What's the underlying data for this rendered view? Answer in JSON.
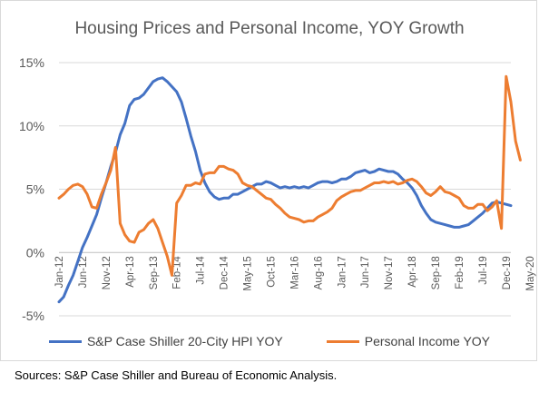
{
  "colors": {
    "hpi": "#4472C4",
    "income": "#ED7D31",
    "grid": "#d9d9d9",
    "axis": "#bfbfbf"
  },
  "source_note": "Sources: S&P Case Shiller and Bureau of Economic Analysis.",
  "chart_data": {
    "type": "line",
    "title": "Housing Prices and Personal Income, YOY Growth",
    "xlabel": "",
    "ylabel": "",
    "ylim": [
      -5,
      15
    ],
    "y_ticks": [
      "15%",
      "10%",
      "5%",
      "0%",
      "-5%"
    ],
    "x_tick_labels": [
      "Jan-12",
      "Jun-12",
      "Nov-12",
      "Apr-13",
      "Sep-13",
      "Feb-14",
      "Jul-14",
      "Dec-14",
      "May-15",
      "Oct-15",
      "Mar-16",
      "Aug-16",
      "Jan-17",
      "Jun-17",
      "Nov-17",
      "Apr-18",
      "Sep-18",
      "Feb-19",
      "Jul-19",
      "Dec-19",
      "May-20"
    ],
    "x_start": "Jan-12",
    "x_end": "May-20",
    "legend_position": "bottom",
    "grid": true,
    "series": [
      {
        "name": "S&P Case Shiller 20-City HPI YOY",
        "values": [
          -3.9,
          -3.5,
          -2.6,
          -1.8,
          -0.7,
          0.4,
          1.2,
          2.1,
          3.0,
          4.3,
          5.5,
          6.8,
          7.9,
          9.3,
          10.2,
          11.6,
          12.1,
          12.2,
          12.5,
          13.0,
          13.5,
          13.7,
          13.8,
          13.5,
          13.1,
          12.7,
          11.9,
          10.6,
          9.2,
          8.0,
          6.5,
          5.5,
          4.8,
          4.4,
          4.2,
          4.3,
          4.3,
          4.6,
          4.6,
          4.8,
          5.0,
          5.2,
          5.4,
          5.4,
          5.6,
          5.5,
          5.3,
          5.1,
          5.2,
          5.1,
          5.2,
          5.1,
          5.2,
          5.1,
          5.3,
          5.5,
          5.6,
          5.6,
          5.5,
          5.6,
          5.8,
          5.8,
          6.0,
          6.3,
          6.4,
          6.5,
          6.3,
          6.4,
          6.6,
          6.5,
          6.4,
          6.4,
          6.2,
          5.8,
          5.5,
          5.1,
          4.5,
          3.7,
          3.1,
          2.6,
          2.4,
          2.3,
          2.2,
          2.1,
          2.0,
          2.0,
          2.1,
          2.2,
          2.5,
          2.8,
          3.1,
          3.5,
          3.9,
          4.0,
          3.9,
          3.8,
          3.7
        ],
        "color": "#4472C4"
      },
      {
        "name": "Personal Income YOY",
        "values": [
          4.3,
          4.6,
          5.0,
          5.3,
          5.4,
          5.2,
          4.6,
          3.6,
          3.5,
          4.6,
          5.5,
          6.5,
          8.3,
          2.3,
          1.4,
          0.9,
          0.8,
          1.6,
          1.8,
          2.3,
          2.6,
          1.9,
          0.8,
          -0.3,
          -1.8,
          3.9,
          4.5,
          5.3,
          5.3,
          5.5,
          5.4,
          6.2,
          6.3,
          6.3,
          6.8,
          6.8,
          6.6,
          6.5,
          6.2,
          5.5,
          5.3,
          5.2,
          4.9,
          4.6,
          4.3,
          4.2,
          3.8,
          3.5,
          3.1,
          2.8,
          2.7,
          2.6,
          2.4,
          2.5,
          2.5,
          2.8,
          3.0,
          3.2,
          3.5,
          4.1,
          4.4,
          4.6,
          4.8,
          4.9,
          4.9,
          5.1,
          5.3,
          5.5,
          5.5,
          5.6,
          5.5,
          5.6,
          5.4,
          5.5,
          5.7,
          5.8,
          5.6,
          5.2,
          4.7,
          4.5,
          4.8,
          5.2,
          4.8,
          4.7,
          4.5,
          4.3,
          3.7,
          3.5,
          3.5,
          3.8,
          3.8,
          3.3,
          3.6,
          4.1,
          1.9,
          13.9,
          11.9,
          8.8,
          7.3
        ],
        "color": "#ED7D31"
      }
    ]
  }
}
